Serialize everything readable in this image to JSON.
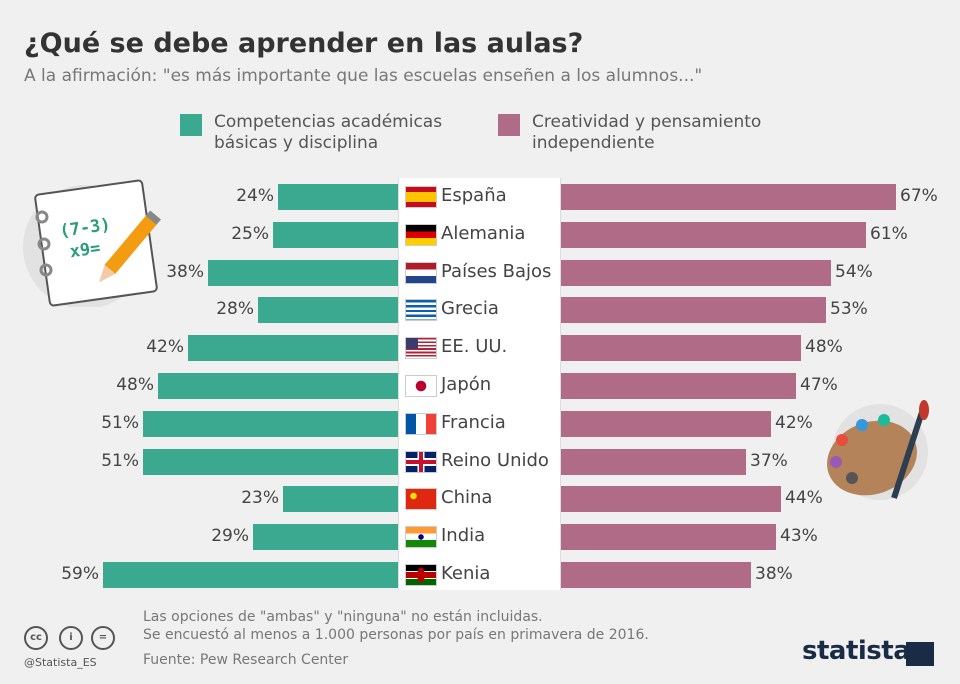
{
  "header": {
    "title": "¿Qué se debe aprender en las aulas?",
    "subtitle": "A la afirmación: \"es más importante que las escuelas enseñen a los alumnos...\""
  },
  "colors": {
    "academic": "#3aa98f",
    "creativity": "#b06c86"
  },
  "chart_data": {
    "type": "bar",
    "title": "¿Qué se debe aprender en las aulas?",
    "categories": [
      "España",
      "Alemania",
      "Países Bajos",
      "Grecia",
      "EE. UU.",
      "Japón",
      "Francia",
      "Reino Unido",
      "China",
      "India",
      "Kenia"
    ],
    "flags": [
      "es",
      "de",
      "nl",
      "gr",
      "us",
      "jp",
      "fr",
      "gb",
      "cn",
      "in",
      "ke"
    ],
    "series": [
      {
        "name": "Competencias académicas básicas y disciplina",
        "values": [
          24,
          25,
          38,
          28,
          42,
          48,
          51,
          51,
          23,
          29,
          59
        ]
      },
      {
        "name": "Creatividad y pensamiento independiente",
        "values": [
          67,
          61,
          54,
          53,
          48,
          47,
          42,
          37,
          44,
          43,
          38
        ]
      }
    ],
    "unit": "%"
  },
  "legend": {
    "academic_l1": "Competencias académicas",
    "academic_l2": "básicas y disciplina",
    "creativity_l1": "Creatividad y pensamiento",
    "creativity_l2": "independiente"
  },
  "footer": {
    "note1": "Las opciones de \"ambas\" y \"ninguna\" no están incluidas.",
    "note2": "Se encuestó al menos a 1.000 personas por país en primavera de 2016.",
    "source": "Fuente: Pew Research Center",
    "handle": "@Statista_ES",
    "logo": "statista",
    "cc": "cc",
    "by": "i",
    "nd": "="
  }
}
